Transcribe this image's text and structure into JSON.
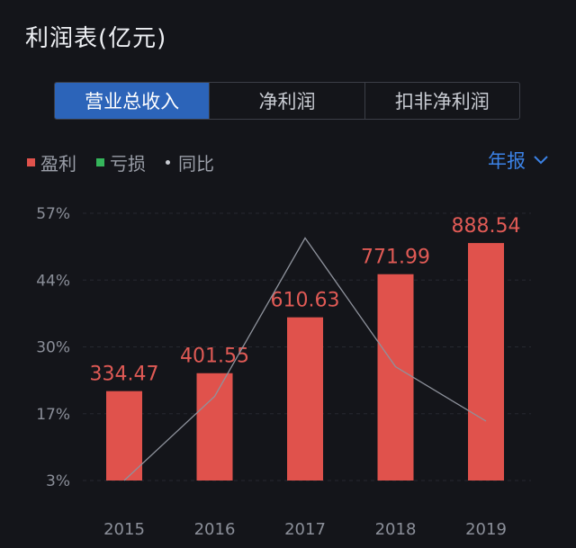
{
  "header": {
    "title": "利润表(亿元)"
  },
  "tabs": [
    {
      "label": "营业总收入",
      "active": true
    },
    {
      "label": "净利润",
      "active": false
    },
    {
      "label": "扣非净利润",
      "active": false
    }
  ],
  "legend": {
    "profit": {
      "label": "盈利",
      "color": "#e0524c"
    },
    "loss": {
      "label": "亏损",
      "color": "#35b55b"
    },
    "yoy": {
      "label": "同比",
      "color": "#c9ccd3"
    }
  },
  "period_selector": {
    "label": "年报",
    "icon": "chevron-down-icon"
  },
  "chart_data": {
    "type": "bar",
    "categories": [
      "2015",
      "2016",
      "2017",
      "2018",
      "2019"
    ],
    "series": [
      {
        "name": "盈利",
        "type": "bar",
        "values": [
          334.47,
          401.55,
          610.63,
          771.99,
          888.54
        ],
        "color": "#e0524c"
      },
      {
        "name": "同比",
        "type": "line",
        "values": [
          3.0,
          20.0,
          52.0,
          26.0,
          15.0
        ],
        "color": "#8e929c"
      }
    ],
    "data_labels": [
      "334.47",
      "401.55",
      "610.63",
      "771.99",
      "888.54"
    ],
    "y_ticks": [
      "57%",
      "44%",
      "30%",
      "17%",
      "3%"
    ],
    "ylim": [
      3,
      57
    ],
    "grid": true
  }
}
